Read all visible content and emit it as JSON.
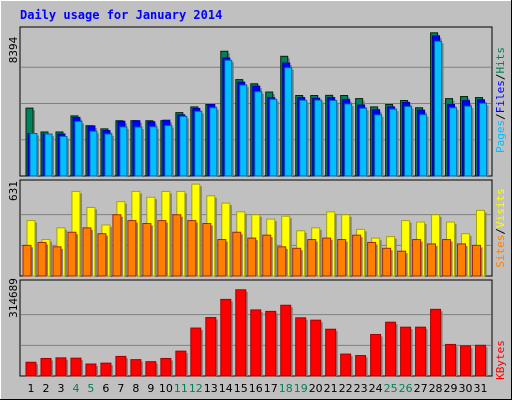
{
  "title": "Daily usage for January 2014",
  "colors": {
    "background": "#C0C0C0",
    "panel": "#C0C0C0",
    "title": "#0000FF",
    "hits": "#00805C",
    "files": "#0000FF",
    "pages": "#00C0FF",
    "visits": "#FFFF00",
    "sites": "#FF8000",
    "kbytes": "#FF0000",
    "weekend_label": "#00805C",
    "weekday_label": "#000000"
  },
  "legend": {
    "top": [
      "Pages",
      "Files",
      "Hits"
    ],
    "middle": [
      "Sites",
      "Visits"
    ],
    "bottom": [
      "KBytes"
    ],
    "separator": "/"
  },
  "chart_data": [
    {
      "type": "bar",
      "panel": "hits-files-pages",
      "max_label": "8394",
      "ylim": [
        0,
        8394
      ],
      "categories": [
        "1",
        "2",
        "3",
        "4",
        "5",
        "6",
        "7",
        "8",
        "9",
        "10",
        "11",
        "12",
        "13",
        "14",
        "15",
        "16",
        "17",
        "18",
        "19",
        "20",
        "21",
        "22",
        "23",
        "24",
        "25",
        "26",
        "27",
        "28",
        "29",
        "30",
        "31"
      ],
      "series": [
        {
          "name": "Hits",
          "values": [
            3930,
            2550,
            2550,
            3480,
            2910,
            2730,
            3200,
            3200,
            3200,
            3200,
            3670,
            4000,
            4140,
            7220,
            5580,
            5340,
            4860,
            6930,
            4660,
            4660,
            4670,
            4660,
            4480,
            4000,
            4140,
            4370,
            3950,
            8290,
            4480,
            4600,
            4540
          ]
        },
        {
          "name": "Files",
          "values": [
            2460,
            2430,
            2430,
            3390,
            2900,
            2630,
            3170,
            3200,
            3140,
            3230,
            3540,
            3910,
            4140,
            6830,
            5430,
            5200,
            4530,
            6540,
            4540,
            4500,
            4540,
            4420,
            4110,
            3830,
            4000,
            4260,
            3810,
            8110,
            4140,
            4360,
            4410
          ]
        },
        {
          "name": "Pages",
          "values": [
            2460,
            2430,
            2290,
            3160,
            2590,
            2430,
            2840,
            2830,
            2850,
            2920,
            3450,
            3740,
            3950,
            6700,
            5260,
            4880,
            4440,
            6270,
            4380,
            4390,
            4370,
            4170,
            3920,
            3540,
            3870,
            4020,
            3550,
            7800,
            3950,
            4040,
            4210
          ]
        }
      ]
    },
    {
      "type": "bar",
      "panel": "visits-sites",
      "max_label": "631",
      "ylim": [
        0,
        631
      ],
      "categories": [
        "1",
        "2",
        "3",
        "4",
        "5",
        "6",
        "7",
        "8",
        "9",
        "10",
        "11",
        "12",
        "13",
        "14",
        "15",
        "16",
        "17",
        "18",
        "19",
        "20",
        "21",
        "22",
        "23",
        "24",
        "25",
        "26",
        "27",
        "28",
        "29",
        "30",
        "31"
      ],
      "series": [
        {
          "name": "Visits",
          "values": [
            380,
            250,
            330,
            580,
            470,
            350,
            510,
            580,
            540,
            580,
            580,
            630,
            550,
            500,
            440,
            420,
            390,
            410,
            310,
            330,
            440,
            420,
            320,
            260,
            270,
            380,
            370,
            420,
            370,
            290,
            450
          ]
        },
        {
          "name": "Sites",
          "values": [
            210,
            230,
            200,
            300,
            330,
            290,
            420,
            380,
            360,
            380,
            420,
            380,
            360,
            250,
            300,
            260,
            280,
            200,
            190,
            250,
            260,
            250,
            280,
            230,
            190,
            170,
            250,
            220,
            250,
            220,
            210
          ]
        }
      ]
    },
    {
      "type": "bar",
      "panel": "kbytes",
      "max_label": "314689",
      "ylim": [
        0,
        314689
      ],
      "categories": [
        "1",
        "2",
        "3",
        "4",
        "5",
        "6",
        "7",
        "8",
        "9",
        "10",
        "11",
        "12",
        "13",
        "14",
        "15",
        "16",
        "17",
        "18",
        "19",
        "20",
        "21",
        "22",
        "23",
        "24",
        "25",
        "26",
        "27",
        "28",
        "29",
        "30",
        "31"
      ],
      "series": [
        {
          "name": "KBytes",
          "values": [
            47000,
            60000,
            62000,
            61000,
            41000,
            44000,
            67000,
            56000,
            49000,
            60000,
            85000,
            164000,
            200000,
            262000,
            295000,
            226000,
            221000,
            242000,
            199000,
            191000,
            160000,
            75000,
            70000,
            142000,
            184000,
            167000,
            167000,
            228000,
            108000,
            103000,
            105000
          ]
        }
      ]
    }
  ],
  "day_labels": [
    "1",
    "2",
    "3",
    "4",
    "5",
    "6",
    "7",
    "8",
    "9",
    "10",
    "11",
    "12",
    "13",
    "14",
    "15",
    "16",
    "17",
    "18",
    "19",
    "20",
    "21",
    "22",
    "23",
    "24",
    "25",
    "26",
    "27",
    "28",
    "29",
    "30",
    "31"
  ],
  "weekend_days": [
    4,
    5,
    11,
    12,
    18,
    19,
    25,
    26
  ]
}
